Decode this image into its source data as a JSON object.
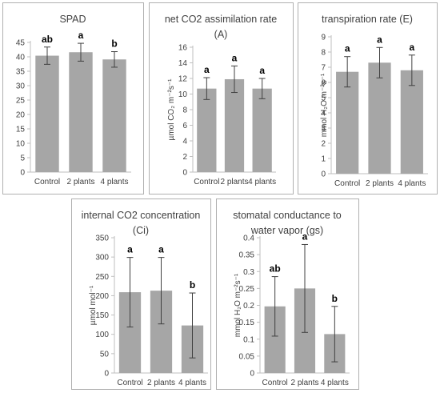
{
  "chart_data": [
    {
      "type": "bar",
      "title": "SPAD",
      "ylabel": "",
      "categories": [
        "Control",
        "2 plants",
        "4 plants"
      ],
      "values": [
        40.4,
        41.6,
        39.1
      ],
      "errors": [
        3.0,
        3.1,
        2.7
      ],
      "letters": [
        "ab",
        "a",
        "b"
      ],
      "ylim": [
        0,
        45
      ],
      "yticks": [
        0,
        5,
        10,
        15,
        20,
        25,
        30,
        35,
        40,
        45
      ],
      "ytick_labels": [
        "0",
        "5",
        "10",
        "15",
        "20",
        "25",
        "30",
        "35",
        "40",
        "45"
      ],
      "grid": false
    },
    {
      "type": "bar",
      "title": "net CO2 assimilation rate\n(A)",
      "ylabel": "µmol CO₂ m⁻²s⁻¹",
      "categories": [
        "Control",
        "2 plants",
        "4 plants"
      ],
      "values": [
        10.7,
        11.9,
        10.7
      ],
      "errors": [
        1.4,
        1.7,
        1.3
      ],
      "letters": [
        "a",
        "a",
        "a"
      ],
      "ylim": [
        0,
        16
      ],
      "yticks": [
        0,
        2,
        4,
        6,
        8,
        10,
        12,
        14,
        16
      ],
      "ytick_labels": [
        "0",
        "2",
        "4",
        "6",
        "8",
        "10",
        "12",
        "14",
        "16"
      ],
      "grid": false
    },
    {
      "type": "bar",
      "title": "transpiration rate (E)",
      "ylabel": "mmol H₂O m⁻²s⁻¹",
      "categories": [
        "Control",
        "2 plants",
        "4 plants"
      ],
      "values": [
        6.7,
        7.3,
        6.8
      ],
      "errors": [
        1.0,
        1.0,
        1.0
      ],
      "letters": [
        "a",
        "a",
        "a"
      ],
      "ylim": [
        0,
        9
      ],
      "yticks": [
        0,
        1,
        2,
        3,
        4,
        5,
        6,
        7,
        8,
        9
      ],
      "ytick_labels": [
        "0",
        "1",
        "2",
        "3",
        "4",
        "5",
        "6",
        "7",
        "8",
        "9"
      ],
      "grid": false
    },
    {
      "type": "bar",
      "title": "internal CO2 concentration\n(Ci)",
      "ylabel": "µmol mol⁻¹",
      "categories": [
        "Control",
        "2 plants",
        "4 plants"
      ],
      "values": [
        209,
        213,
        123
      ],
      "errors": [
        90,
        86,
        84
      ],
      "letters": [
        "a",
        "a",
        "b"
      ],
      "ylim": [
        0,
        350
      ],
      "yticks": [
        0,
        50,
        100,
        150,
        200,
        250,
        300,
        350
      ],
      "ytick_labels": [
        "0",
        "50",
        "100",
        "150",
        "200",
        "250",
        "300",
        "350"
      ],
      "grid": false
    },
    {
      "type": "bar",
      "title": "stomatal conductance to\nwater vapor (gs)",
      "ylabel": "mmol H₂O m⁻²s⁻¹",
      "categories": [
        "Control",
        "2 plants",
        "4 plants"
      ],
      "values": [
        0.197,
        0.25,
        0.115
      ],
      "errors": [
        0.088,
        0.13,
        0.082
      ],
      "letters": [
        "ab",
        "a",
        "b"
      ],
      "ylim": [
        0,
        0.4
      ],
      "yticks": [
        0,
        0.05,
        0.1,
        0.15,
        0.2,
        0.25,
        0.3,
        0.35,
        0.4
      ],
      "ytick_labels": [
        "0",
        "0.05",
        "0.1",
        "0.15",
        "0.2",
        "0.25",
        "0.3",
        "0.35",
        "0.4"
      ],
      "grid": false
    }
  ],
  "colors": {
    "bar": "#a6a6a6",
    "axis": "#bfbfbf",
    "panel_border": "#b0b0b0",
    "text": "#404040",
    "letter": "#000000",
    "error_bar": "#404040"
  }
}
